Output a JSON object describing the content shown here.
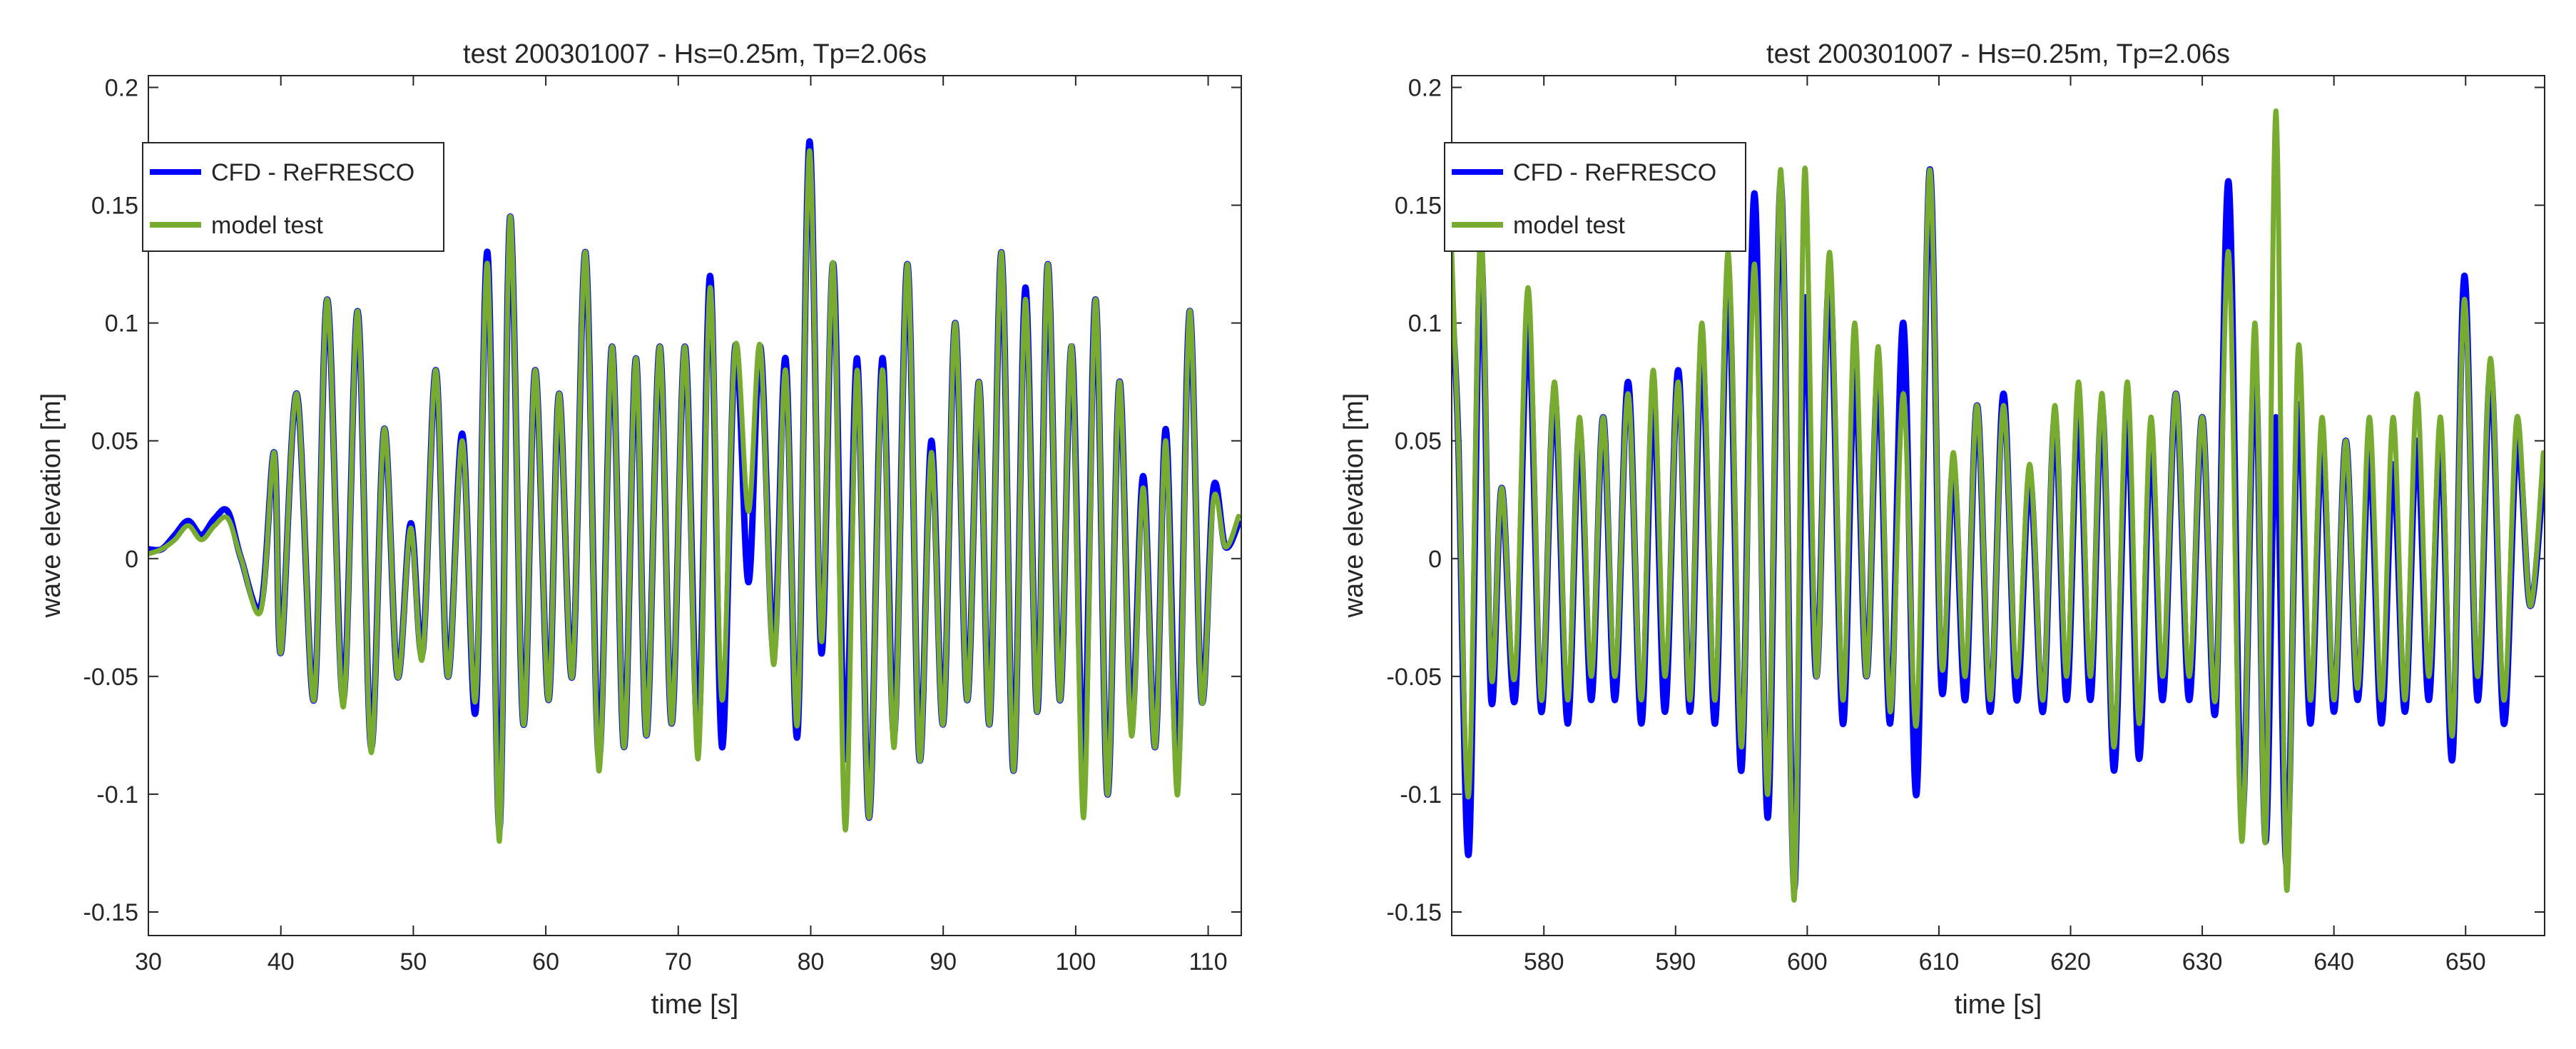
{
  "colors": {
    "cfd": "#0000FF",
    "model": "#77AC30",
    "axis": "#262626",
    "grid": "#d9d9d9"
  },
  "chart_data": [
    {
      "type": "line",
      "title": "test 200301007 - Hs=0.25m, Tp=2.06s",
      "xlabel": "time [s]",
      "ylabel": "wave elevation [m]",
      "xlim": [
        30,
        112.5
      ],
      "ylim": [
        -0.16,
        0.205
      ],
      "xticks": [
        30,
        40,
        50,
        60,
        70,
        80,
        90,
        100,
        110
      ],
      "xtick_labels": [
        "30",
        "40",
        "50",
        "60",
        "70",
        "80",
        "90",
        "100",
        "110"
      ],
      "yticks": [
        -0.15,
        -0.1,
        -0.05,
        0,
        0.05,
        0.1,
        0.15,
        0.2
      ],
      "ytick_labels": [
        "-0.15",
        "-0.1",
        "-0.05",
        "0",
        "0.05",
        "0.1",
        "0.15",
        "0.2"
      ],
      "legend_position": "top-left",
      "series": [
        {
          "name": "CFD - ReFRESCO",
          "color": "#0000FF",
          "x": [
            30,
            31,
            32,
            33,
            34,
            35,
            36,
            37,
            38.5,
            39.5,
            40,
            41.2,
            42.5,
            43.5,
            44.7,
            45.8,
            46.8,
            47.8,
            48.8,
            49.8,
            50.7,
            51.7,
            52.6,
            53.7,
            54.7,
            55.6,
            56.5,
            57.3,
            58.3,
            59.2,
            60.2,
            61,
            62,
            63,
            64,
            65,
            65.9,
            66.8,
            67.6,
            68.6,
            69.5,
            70.5,
            71.5,
            72.4,
            73.3,
            74.3,
            75.3,
            76.2,
            77.2,
            78.1,
            79,
            79.9,
            80.8,
            81.7,
            82.6,
            83.5,
            84.4,
            85.4,
            86.3,
            87.3,
            88.2,
            89.1,
            90,
            90.9,
            91.8,
            92.7,
            93.5,
            94.4,
            95.3,
            96.2,
            97.1,
            97.9,
            98.8,
            99.7,
            100.6,
            101.5,
            102.4,
            103.3,
            104.2,
            105.1,
            106,
            106.8,
            107.7,
            108.6,
            109.5,
            110.4,
            111.3,
            112.3
          ],
          "y": [
            0.004,
            0.004,
            0.01,
            0.016,
            0.01,
            0.017,
            0.02,
            0,
            -0.02,
            0.045,
            -0.04,
            0.07,
            -0.06,
            0.11,
            -0.06,
            0.105,
            -0.08,
            0.055,
            -0.05,
            0.015,
            -0.04,
            0.08,
            -0.05,
            0.053,
            -0.065,
            0.13,
            -0.115,
            0.145,
            -0.07,
            0.08,
            -0.06,
            0.07,
            -0.05,
            0.13,
            -0.085,
            0.09,
            -0.08,
            0.085,
            -0.075,
            0.09,
            -0.07,
            0.09,
            -0.075,
            0.12,
            -0.08,
            0.09,
            -0.01,
            0.09,
            -0.04,
            0.085,
            -0.075,
            0.177,
            -0.04,
            0.125,
            -0.085,
            0.085,
            -0.11,
            0.085,
            -0.075,
            0.125,
            -0.085,
            0.05,
            -0.07,
            0.1,
            -0.06,
            0.075,
            -0.07,
            0.13,
            -0.09,
            0.115,
            -0.065,
            0.125,
            -0.06,
            0.09,
            -0.09,
            0.11,
            -0.1,
            0.075,
            -0.07,
            0.035,
            -0.08,
            0.055,
            -0.09,
            0.105,
            -0.06,
            0.03,
            0.005,
            0.015
          ]
        },
        {
          "name": "model test",
          "color": "#77AC30",
          "x": [
            30,
            31,
            32,
            33,
            34,
            35,
            36,
            37,
            38.5,
            39.5,
            40,
            41.2,
            42.5,
            43.5,
            44.7,
            45.8,
            46.8,
            47.8,
            48.8,
            49.8,
            50.7,
            51.7,
            52.6,
            53.7,
            54.7,
            55.6,
            56.5,
            57.3,
            58.3,
            59.2,
            60.2,
            61,
            62,
            63,
            64,
            65,
            65.9,
            66.8,
            67.6,
            68.6,
            69.5,
            70.5,
            71.5,
            72.4,
            73.3,
            74.3,
            75.3,
            76.2,
            77.2,
            78.1,
            79,
            79.9,
            80.8,
            81.7,
            82.6,
            83.5,
            84.4,
            85.4,
            86.3,
            87.3,
            88.2,
            89.1,
            90,
            90.9,
            91.8,
            92.7,
            93.5,
            94.4,
            95.3,
            96.2,
            97.1,
            97.9,
            98.8,
            99.7,
            100.6,
            101.5,
            102.4,
            103.3,
            104.2,
            105.1,
            106,
            106.8,
            107.7,
            108.6,
            109.5,
            110.4,
            111.3,
            112.3
          ],
          "y": [
            0.002,
            0.004,
            0.008,
            0.014,
            0.008,
            0.014,
            0.017,
            0,
            -0.022,
            0.045,
            -0.04,
            0.07,
            -0.06,
            0.11,
            -0.063,
            0.105,
            -0.082,
            0.055,
            -0.05,
            0.013,
            -0.042,
            0.08,
            -0.05,
            0.05,
            -0.06,
            0.125,
            -0.12,
            0.145,
            -0.07,
            0.08,
            -0.06,
            0.07,
            -0.05,
            0.13,
            -0.09,
            0.09,
            -0.08,
            0.085,
            -0.075,
            0.09,
            -0.07,
            0.09,
            -0.085,
            0.115,
            -0.06,
            0.09,
            0.02,
            0.09,
            -0.045,
            0.08,
            -0.07,
            0.173,
            -0.035,
            0.125,
            -0.115,
            0.08,
            -0.11,
            0.08,
            -0.08,
            0.125,
            -0.085,
            0.045,
            -0.07,
            0.1,
            -0.06,
            0.075,
            -0.07,
            0.13,
            -0.09,
            0.11,
            -0.065,
            0.125,
            -0.06,
            0.09,
            -0.11,
            0.11,
            -0.1,
            0.075,
            -0.075,
            0.03,
            -0.08,
            0.05,
            -0.1,
            0.105,
            -0.06,
            0.025,
            0.005,
            0.018
          ]
        }
      ]
    },
    {
      "type": "line",
      "title": "test 200301007 - Hs=0.25m, Tp=2.06s",
      "xlabel": "time [s]",
      "ylabel": "wave elevation [m]",
      "xlim": [
        573,
        656
      ],
      "ylim": [
        -0.16,
        0.205
      ],
      "xticks": [
        580,
        590,
        600,
        610,
        620,
        630,
        640,
        650
      ],
      "xtick_labels": [
        "580",
        "590",
        "600",
        "610",
        "620",
        "630",
        "640",
        "650"
      ],
      "yticks": [
        -0.15,
        -0.1,
        -0.05,
        0,
        0.05,
        0.1,
        0.15,
        0.2
      ],
      "ytick_labels": [
        "-0.15",
        "-0.1",
        "-0.05",
        "0",
        "0.05",
        "0.1",
        "0.15",
        "0.2"
      ],
      "legend_position": "top-left",
      "series": [
        {
          "name": "CFD - ReFRESCO",
          "color": "#0000FF",
          "x": [
            573,
            573.5,
            574.3,
            575.2,
            576,
            576.8,
            577.8,
            578.8,
            579.8,
            580.8,
            581.8,
            582.7,
            583.6,
            584.5,
            585.4,
            586.4,
            587.4,
            588.3,
            589.2,
            590.2,
            591.1,
            592,
            593,
            594,
            595,
            596,
            597,
            598,
            599,
            599.8,
            600.7,
            601.7,
            602.7,
            603.6,
            604.5,
            605.4,
            606.3,
            607.3,
            608.3,
            609.3,
            610.2,
            611.1,
            612,
            612.9,
            613.9,
            614.9,
            615.9,
            616.9,
            617.9,
            618.8,
            619.7,
            620.6,
            621.5,
            622.4,
            623.3,
            624.3,
            625.2,
            626.1,
            627,
            628,
            629,
            630,
            631,
            632,
            633,
            634,
            634.8,
            635.6,
            636.4,
            637.3,
            638.2,
            639.1,
            640,
            640.9,
            641.8,
            642.7,
            643.6,
            644.5,
            645.4,
            646.3,
            647.2,
            648.1,
            649,
            649.9,
            650.9,
            651.9,
            652.9,
            653.9,
            654.9,
            655.9
          ],
          "y": [
            0.11,
            0.05,
            -0.125,
            0.13,
            -0.06,
            0.03,
            -0.06,
            0.1,
            -0.065,
            0.07,
            -0.07,
            0.055,
            -0.06,
            0.06,
            -0.06,
            0.075,
            -0.07,
            0.07,
            -0.065,
            0.08,
            -0.065,
            0.09,
            -0.07,
            0.12,
            -0.09,
            0.155,
            -0.11,
            0.16,
            -0.14,
            0.11,
            -0.05,
            0.12,
            -0.07,
            0.08,
            -0.05,
            0.08,
            -0.07,
            0.1,
            -0.1,
            0.165,
            -0.055,
            0.04,
            -0.06,
            0.065,
            -0.065,
            0.07,
            -0.06,
            0.035,
            -0.065,
            0.06,
            -0.06,
            0.065,
            -0.06,
            0.065,
            -0.09,
            0.06,
            -0.085,
            0.05,
            -0.06,
            0.07,
            -0.06,
            0.06,
            -0.065,
            0.16,
            -0.11,
            0.085,
            -0.12,
            0.06,
            -0.13,
            0.065,
            -0.07,
            0.05,
            -0.065,
            0.05,
            -0.06,
            0.045,
            -0.07,
            0.04,
            -0.065,
            0.05,
            -0.06,
            0.05,
            -0.085,
            0.12,
            -0.06,
            0.08,
            -0.07,
            0.05,
            -0.02,
            0.035
          ]
        },
        {
          "name": "model test",
          "color": "#77AC30",
          "x": [
            573,
            573.5,
            574.3,
            575.2,
            576,
            576.8,
            577.8,
            578.8,
            579.8,
            580.8,
            581.8,
            582.7,
            583.6,
            584.5,
            585.4,
            586.4,
            587.4,
            588.3,
            589.2,
            590.2,
            591.1,
            592,
            593,
            594,
            595,
            596,
            597,
            598,
            599,
            599.8,
            600.7,
            601.7,
            602.7,
            603.6,
            604.5,
            605.4,
            606.3,
            607.3,
            608.3,
            609.3,
            610.2,
            611.1,
            612,
            612.9,
            613.9,
            614.9,
            615.9,
            616.9,
            617.9,
            618.8,
            619.7,
            620.6,
            621.5,
            622.4,
            623.3,
            624.3,
            625.2,
            626.1,
            627,
            628,
            629,
            630,
            631,
            632,
            633,
            634,
            634.8,
            635.6,
            636.4,
            637.3,
            638.2,
            639.1,
            640,
            640.9,
            641.8,
            642.7,
            643.6,
            644.5,
            645.4,
            646.3,
            647.2,
            648.1,
            649,
            649.9,
            650.9,
            651.9,
            652.9,
            653.9,
            654.9,
            655.9
          ],
          "y": [
            0.13,
            0.05,
            -0.1,
            0.14,
            -0.05,
            0.03,
            -0.05,
            0.115,
            -0.06,
            0.075,
            -0.06,
            0.06,
            -0.05,
            0.06,
            -0.05,
            0.07,
            -0.06,
            0.08,
            -0.05,
            0.075,
            -0.06,
            0.1,
            -0.06,
            0.13,
            -0.08,
            0.125,
            -0.1,
            0.165,
            -0.145,
            0.165,
            -0.05,
            0.13,
            -0.06,
            0.1,
            -0.05,
            0.09,
            -0.065,
            0.07,
            -0.07,
            0.165,
            -0.045,
            0.045,
            -0.05,
            0.065,
            -0.06,
            0.065,
            -0.05,
            0.04,
            -0.06,
            0.065,
            -0.05,
            0.075,
            -0.05,
            0.07,
            -0.08,
            0.075,
            -0.07,
            0.06,
            -0.05,
            0.07,
            -0.05,
            0.06,
            -0.06,
            0.13,
            -0.12,
            0.1,
            -0.12,
            0.19,
            -0.14,
            0.09,
            -0.06,
            0.06,
            -0.06,
            0.05,
            -0.055,
            0.06,
            -0.06,
            0.06,
            -0.06,
            0.07,
            -0.05,
            0.06,
            -0.075,
            0.11,
            -0.05,
            0.085,
            -0.06,
            0.06,
            -0.02,
            0.045
          ]
        }
      ]
    }
  ]
}
